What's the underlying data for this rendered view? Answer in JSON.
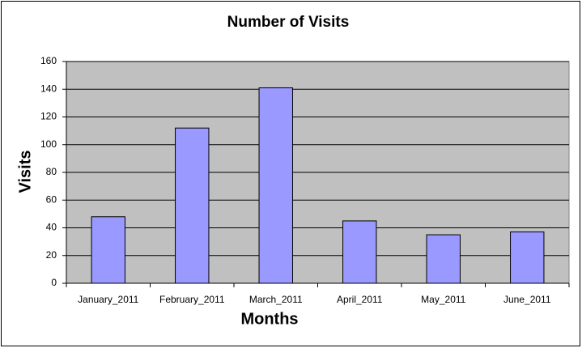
{
  "chart_data": {
    "type": "bar",
    "title": "Number of Visits",
    "x_label": "Months",
    "y_label": "Visits",
    "categories": [
      "January_2011",
      "February_2011",
      "March_2011",
      "April_2011",
      "May_2011",
      "June_2011"
    ],
    "values": [
      48,
      112,
      141,
      45,
      35,
      37
    ],
    "color": "#9999ff",
    "ylim": [
      0,
      160
    ],
    "yticks": [
      0,
      20,
      40,
      60,
      80,
      100,
      120,
      140,
      160
    ],
    "grid": true
  }
}
